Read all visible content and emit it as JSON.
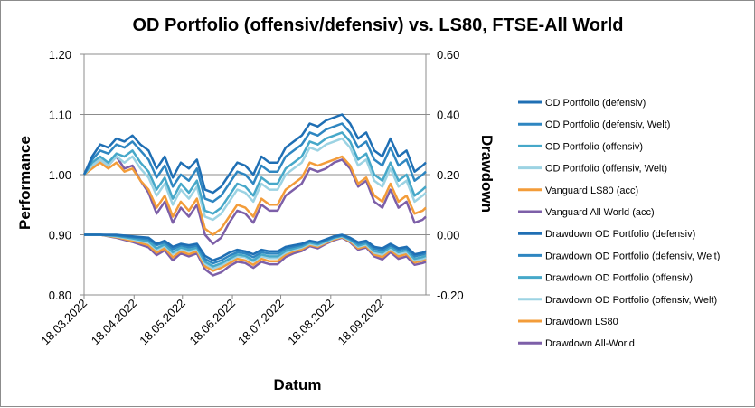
{
  "chart_data": {
    "type": "line",
    "title": "OD Portfolio (offensiv/defensiv) vs. LS80, FTSE-All World",
    "xlabel": "Datum",
    "ylabel": "Performance",
    "y2label": "Drawdown",
    "ylim": [
      0.8,
      1.2
    ],
    "y2lim": [
      -0.2,
      0.6
    ],
    "y_ticks": [
      "0.80",
      "0.90",
      "1.00",
      "1.10",
      "1.20"
    ],
    "y2_ticks": [
      "-0.20",
      "0.00",
      "0.20",
      "0.40",
      "0.60"
    ],
    "x_ticks": [
      "18.03.2022",
      "18.04.2022",
      "18.05.2022",
      "18.06.2022",
      "18.07.2022",
      "18.08.2022",
      "18.09.2022"
    ],
    "x_range_days": [
      0,
      212
    ],
    "legend_position": "right",
    "series": [
      {
        "name": "OD Portfolio (defensiv)",
        "axis": "left",
        "color": "#1f6fb4",
        "x": [
          0,
          5,
          10,
          15,
          20,
          25,
          30,
          35,
          40,
          45,
          50,
          55,
          60,
          65,
          70,
          75,
          80,
          85,
          90,
          95,
          100,
          105,
          110,
          115,
          120,
          125,
          130,
          135,
          140,
          145,
          150,
          155,
          160,
          165,
          170,
          175,
          180,
          185,
          190,
          195,
          200,
          205,
          210,
          212
        ],
        "y": [
          1.0,
          1.03,
          1.05,
          1.045,
          1.06,
          1.055,
          1.065,
          1.05,
          1.04,
          1.01,
          1.03,
          0.995,
          1.02,
          1.01,
          1.025,
          0.975,
          0.97,
          0.98,
          1.0,
          1.02,
          1.015,
          1.0,
          1.03,
          1.02,
          1.02,
          1.045,
          1.055,
          1.065,
          1.085,
          1.08,
          1.09,
          1.095,
          1.1,
          1.085,
          1.06,
          1.07,
          1.04,
          1.03,
          1.06,
          1.03,
          1.04,
          1.005,
          1.015,
          1.02
        ]
      },
      {
        "name": "OD Portfolio (defensiv, Welt)",
        "axis": "left",
        "color": "#2e86c1",
        "x": [
          0,
          5,
          10,
          15,
          20,
          25,
          30,
          35,
          40,
          45,
          50,
          55,
          60,
          65,
          70,
          75,
          80,
          85,
          90,
          95,
          100,
          105,
          110,
          115,
          120,
          125,
          130,
          135,
          140,
          145,
          150,
          155,
          160,
          165,
          170,
          175,
          180,
          185,
          190,
          195,
          200,
          205,
          210,
          212
        ],
        "y": [
          1.0,
          1.025,
          1.04,
          1.035,
          1.05,
          1.045,
          1.055,
          1.04,
          1.025,
          0.995,
          1.015,
          0.98,
          1.0,
          0.99,
          1.01,
          0.96,
          0.955,
          0.965,
          0.985,
          1.005,
          1.0,
          0.985,
          1.015,
          1.005,
          1.005,
          1.03,
          1.04,
          1.05,
          1.07,
          1.065,
          1.075,
          1.08,
          1.085,
          1.07,
          1.045,
          1.055,
          1.025,
          1.015,
          1.045,
          1.015,
          1.025,
          0.99,
          1.0,
          1.005
        ]
      },
      {
        "name": "OD Portfolio (offensiv)",
        "axis": "left",
        "color": "#46a8c9",
        "x": [
          0,
          5,
          10,
          15,
          20,
          25,
          30,
          35,
          40,
          45,
          50,
          55,
          60,
          65,
          70,
          75,
          80,
          85,
          90,
          95,
          100,
          105,
          110,
          115,
          120,
          125,
          130,
          135,
          140,
          145,
          150,
          155,
          160,
          165,
          170,
          175,
          180,
          185,
          190,
          195,
          200,
          205,
          210,
          212
        ],
        "y": [
          1.0,
          1.02,
          1.03,
          1.02,
          1.035,
          1.03,
          1.04,
          1.02,
          1.005,
          0.975,
          0.995,
          0.96,
          0.985,
          0.97,
          0.99,
          0.94,
          0.935,
          0.945,
          0.965,
          0.985,
          0.98,
          0.965,
          0.995,
          0.985,
          0.985,
          1.01,
          1.02,
          1.03,
          1.055,
          1.05,
          1.06,
          1.065,
          1.07,
          1.055,
          1.025,
          1.035,
          1.0,
          0.99,
          1.02,
          0.99,
          1.0,
          0.965,
          0.975,
          0.98
        ]
      },
      {
        "name": "OD Portfolio (offensiv, Welt)",
        "axis": "left",
        "color": "#9cd3e3",
        "x": [
          0,
          5,
          10,
          15,
          20,
          25,
          30,
          35,
          40,
          45,
          50,
          55,
          60,
          65,
          70,
          75,
          80,
          85,
          90,
          95,
          100,
          105,
          110,
          115,
          120,
          125,
          130,
          135,
          140,
          145,
          150,
          155,
          160,
          165,
          170,
          175,
          180,
          185,
          190,
          195,
          200,
          205,
          210,
          212
        ],
        "y": [
          1.0,
          1.015,
          1.025,
          1.015,
          1.03,
          1.02,
          1.03,
          1.01,
          0.995,
          0.965,
          0.985,
          0.95,
          0.975,
          0.96,
          0.98,
          0.93,
          0.925,
          0.935,
          0.955,
          0.975,
          0.97,
          0.955,
          0.985,
          0.975,
          0.975,
          1.0,
          1.01,
          1.02,
          1.045,
          1.04,
          1.05,
          1.055,
          1.06,
          1.045,
          1.015,
          1.025,
          0.99,
          0.98,
          1.01,
          0.98,
          0.99,
          0.955,
          0.965,
          0.97
        ]
      },
      {
        "name": "Vanguard LS80 (acc)",
        "axis": "left",
        "color": "#f39c39",
        "x": [
          0,
          5,
          10,
          15,
          20,
          25,
          30,
          35,
          40,
          45,
          50,
          55,
          60,
          65,
          70,
          75,
          80,
          85,
          90,
          95,
          100,
          105,
          110,
          115,
          120,
          125,
          130,
          135,
          140,
          145,
          150,
          155,
          160,
          165,
          170,
          175,
          180,
          185,
          190,
          195,
          200,
          205,
          210,
          212
        ],
        "y": [
          1.0,
          1.01,
          1.02,
          1.01,
          1.02,
          1.005,
          1.01,
          0.99,
          0.975,
          0.945,
          0.965,
          0.93,
          0.955,
          0.94,
          0.96,
          0.91,
          0.9,
          0.91,
          0.93,
          0.95,
          0.945,
          0.93,
          0.96,
          0.95,
          0.95,
          0.975,
          0.985,
          0.995,
          1.02,
          1.015,
          1.02,
          1.025,
          1.03,
          1.015,
          0.985,
          0.995,
          0.965,
          0.955,
          0.985,
          0.955,
          0.965,
          0.935,
          0.94,
          0.945
        ]
      },
      {
        "name": "Vanguard All World (acc)",
        "axis": "left",
        "color": "#7d5fa8",
        "x": [
          0,
          5,
          10,
          15,
          20,
          25,
          30,
          35,
          40,
          45,
          50,
          55,
          60,
          65,
          70,
          75,
          80,
          85,
          90,
          95,
          100,
          105,
          110,
          115,
          120,
          125,
          130,
          135,
          140,
          145,
          150,
          155,
          160,
          165,
          170,
          175,
          180,
          185,
          190,
          195,
          200,
          205,
          210,
          212
        ],
        "y": [
          1.0,
          1.015,
          1.025,
          1.015,
          1.03,
          1.01,
          1.015,
          0.99,
          0.97,
          0.935,
          0.955,
          0.92,
          0.945,
          0.93,
          0.95,
          0.9,
          0.885,
          0.895,
          0.92,
          0.94,
          0.935,
          0.92,
          0.95,
          0.94,
          0.94,
          0.965,
          0.975,
          0.985,
          1.01,
          1.005,
          1.01,
          1.02,
          1.025,
          1.01,
          0.98,
          0.99,
          0.955,
          0.945,
          0.975,
          0.945,
          0.955,
          0.92,
          0.925,
          0.93
        ]
      },
      {
        "name": "Drawdown OD Portfolio (defensiv)",
        "axis": "right",
        "color": "#1f6fb4",
        "x": [
          0,
          10,
          20,
          30,
          40,
          45,
          50,
          55,
          60,
          65,
          70,
          75,
          80,
          85,
          90,
          95,
          100,
          105,
          110,
          115,
          120,
          125,
          130,
          135,
          140,
          145,
          150,
          155,
          160,
          165,
          170,
          175,
          180,
          185,
          190,
          195,
          200,
          205,
          210,
          212
        ],
        "y": [
          0.0,
          0.0,
          0.0,
          -0.005,
          -0.01,
          -0.03,
          -0.02,
          -0.04,
          -0.03,
          -0.035,
          -0.03,
          -0.07,
          -0.085,
          -0.075,
          -0.06,
          -0.05,
          -0.055,
          -0.065,
          -0.05,
          -0.055,
          -0.055,
          -0.04,
          -0.035,
          -0.03,
          -0.02,
          -0.025,
          -0.015,
          -0.005,
          0.0,
          -0.01,
          -0.025,
          -0.02,
          -0.04,
          -0.045,
          -0.03,
          -0.045,
          -0.04,
          -0.065,
          -0.06,
          -0.055
        ]
      },
      {
        "name": "Drawdown OD Portfolio (defensiv, Welt)",
        "axis": "right",
        "color": "#2e86c1",
        "x": [
          0,
          10,
          20,
          30,
          40,
          45,
          50,
          55,
          60,
          65,
          70,
          75,
          80,
          85,
          90,
          95,
          100,
          105,
          110,
          115,
          120,
          125,
          130,
          135,
          140,
          145,
          150,
          155,
          160,
          165,
          170,
          175,
          180,
          185,
          190,
          195,
          200,
          205,
          210,
          212
        ],
        "y": [
          0.0,
          0.0,
          -0.002,
          -0.008,
          -0.015,
          -0.035,
          -0.025,
          -0.048,
          -0.035,
          -0.042,
          -0.036,
          -0.08,
          -0.095,
          -0.085,
          -0.07,
          -0.058,
          -0.062,
          -0.075,
          -0.058,
          -0.063,
          -0.063,
          -0.046,
          -0.04,
          -0.034,
          -0.022,
          -0.028,
          -0.018,
          -0.008,
          -0.002,
          -0.013,
          -0.03,
          -0.024,
          -0.046,
          -0.052,
          -0.035,
          -0.05,
          -0.045,
          -0.072,
          -0.066,
          -0.062
        ]
      },
      {
        "name": "Drawdown OD Portfolio (offensiv)",
        "axis": "right",
        "color": "#46a8c9",
        "x": [
          0,
          10,
          20,
          30,
          40,
          45,
          50,
          55,
          60,
          65,
          70,
          75,
          80,
          85,
          90,
          95,
          100,
          105,
          110,
          115,
          120,
          125,
          130,
          135,
          140,
          145,
          150,
          155,
          160,
          165,
          170,
          175,
          180,
          185,
          190,
          195,
          200,
          205,
          210,
          212
        ],
        "y": [
          0.0,
          0.0,
          -0.004,
          -0.012,
          -0.022,
          -0.045,
          -0.032,
          -0.058,
          -0.042,
          -0.05,
          -0.043,
          -0.09,
          -0.105,
          -0.095,
          -0.08,
          -0.066,
          -0.07,
          -0.085,
          -0.066,
          -0.072,
          -0.072,
          -0.054,
          -0.046,
          -0.039,
          -0.026,
          -0.032,
          -0.021,
          -0.01,
          -0.004,
          -0.016,
          -0.036,
          -0.029,
          -0.054,
          -0.06,
          -0.041,
          -0.058,
          -0.052,
          -0.08,
          -0.074,
          -0.07
        ]
      },
      {
        "name": "Drawdown OD Portfolio (offensiv, Welt)",
        "axis": "right",
        "color": "#9cd3e3",
        "x": [
          0,
          10,
          20,
          30,
          40,
          45,
          50,
          55,
          60,
          65,
          70,
          75,
          80,
          85,
          90,
          95,
          100,
          105,
          110,
          115,
          120,
          125,
          130,
          135,
          140,
          145,
          150,
          155,
          160,
          165,
          170,
          175,
          180,
          185,
          190,
          195,
          200,
          205,
          210,
          212
        ],
        "y": [
          0.0,
          0.0,
          -0.006,
          -0.015,
          -0.027,
          -0.05,
          -0.037,
          -0.064,
          -0.048,
          -0.056,
          -0.048,
          -0.096,
          -0.112,
          -0.102,
          -0.086,
          -0.072,
          -0.075,
          -0.09,
          -0.072,
          -0.078,
          -0.078,
          -0.06,
          -0.05,
          -0.043,
          -0.03,
          -0.036,
          -0.024,
          -0.012,
          -0.006,
          -0.019,
          -0.04,
          -0.033,
          -0.06,
          -0.066,
          -0.046,
          -0.064,
          -0.057,
          -0.086,
          -0.08,
          -0.076
        ]
      },
      {
        "name": "Drawdown LS80",
        "axis": "right",
        "color": "#f39c39",
        "x": [
          0,
          10,
          20,
          30,
          40,
          45,
          50,
          55,
          60,
          65,
          70,
          75,
          80,
          85,
          90,
          95,
          100,
          105,
          110,
          115,
          120,
          125,
          130,
          135,
          140,
          145,
          150,
          155,
          160,
          165,
          170,
          175,
          180,
          185,
          190,
          195,
          200,
          205,
          210,
          212
        ],
        "y": [
          0.0,
          0.0,
          -0.008,
          -0.02,
          -0.035,
          -0.06,
          -0.045,
          -0.075,
          -0.055,
          -0.065,
          -0.055,
          -0.105,
          -0.12,
          -0.11,
          -0.095,
          -0.08,
          -0.085,
          -0.1,
          -0.08,
          -0.088,
          -0.088,
          -0.066,
          -0.055,
          -0.048,
          -0.034,
          -0.04,
          -0.027,
          -0.015,
          -0.008,
          -0.022,
          -0.045,
          -0.038,
          -0.066,
          -0.074,
          -0.052,
          -0.072,
          -0.064,
          -0.092,
          -0.086,
          -0.082
        ]
      },
      {
        "name": "Drawdown All-World",
        "axis": "right",
        "color": "#7d5fa8",
        "x": [
          0,
          10,
          20,
          30,
          40,
          45,
          50,
          55,
          60,
          65,
          70,
          75,
          80,
          85,
          90,
          95,
          100,
          105,
          110,
          115,
          120,
          125,
          130,
          135,
          140,
          145,
          150,
          155,
          160,
          165,
          170,
          175,
          180,
          185,
          190,
          195,
          200,
          205,
          210,
          212
        ],
        "y": [
          0.0,
          0.0,
          -0.01,
          -0.024,
          -0.042,
          -0.068,
          -0.052,
          -0.085,
          -0.062,
          -0.072,
          -0.062,
          -0.115,
          -0.135,
          -0.125,
          -0.105,
          -0.09,
          -0.094,
          -0.11,
          -0.09,
          -0.098,
          -0.098,
          -0.074,
          -0.062,
          -0.054,
          -0.038,
          -0.045,
          -0.03,
          -0.018,
          -0.01,
          -0.025,
          -0.05,
          -0.042,
          -0.072,
          -0.082,
          -0.058,
          -0.08,
          -0.072,
          -0.1,
          -0.094,
          -0.09
        ]
      }
    ]
  }
}
